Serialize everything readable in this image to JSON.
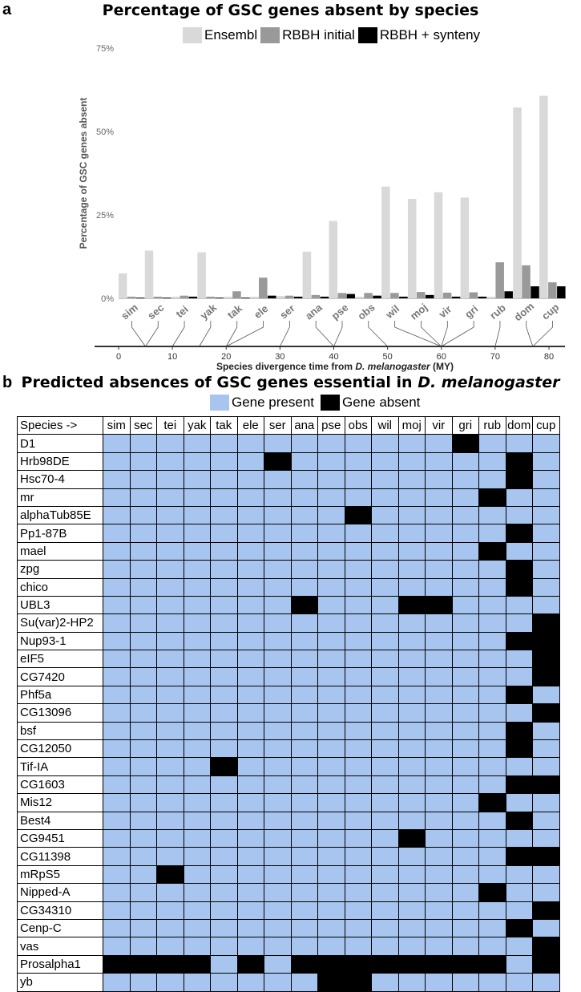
{
  "panel_a": {
    "letter": "a",
    "title": "Percentage of GSC genes absent by species",
    "legend": [
      "Ensembl",
      "RBBH initial",
      "RBBH + synteny"
    ],
    "colors": {
      "Ensembl": "#d9d9d9",
      "RBBH initial": "#999999",
      "RBBH + synteny": "#000000"
    },
    "ylabel": "Percentage of GSC genes absent",
    "xlabel_prefix": "Species divergence time from ",
    "xlabel_italic": "D. melanogaster",
    "xlabel_suffix": " (MY)",
    "ytick_labels": [
      "0%",
      "25%",
      "50%",
      "75%"
    ],
    "xtick_labels": [
      "0",
      "10",
      "20",
      "30",
      "40",
      "50",
      "60",
      "70",
      "80"
    ]
  },
  "chart_data": {
    "type": "bar",
    "categories": [
      "sim",
      "sec",
      "tei",
      "yak",
      "tak",
      "ele",
      "ser",
      "ana",
      "pse",
      "obs",
      "wil",
      "moj",
      "vir",
      "gri",
      "rub",
      "dom",
      "cup"
    ],
    "series": [
      {
        "name": "Ensembl",
        "values": [
          7.5,
          14.3,
          0.5,
          13.8,
          0.5,
          0.5,
          0.7,
          14.0,
          23.2,
          0.5,
          33.5,
          29.8,
          31.8,
          30.2,
          0.5,
          57.2,
          60.7
        ]
      },
      {
        "name": "RBBH initial",
        "values": [
          0.5,
          0.5,
          0.8,
          0.5,
          2.1,
          6.2,
          0.8,
          1.0,
          1.6,
          1.6,
          1.6,
          1.9,
          1.7,
          1.8,
          10.8,
          9.9,
          4.8
        ]
      },
      {
        "name": "RBBH + synteny",
        "values": [
          0.2,
          0.2,
          0.5,
          0.2,
          0.2,
          0.8,
          0.5,
          0.5,
          1.3,
          0.8,
          0.5,
          1.0,
          0.5,
          0.5,
          2.1,
          3.6,
          3.6
        ]
      }
    ],
    "divergence_MY": [
      5,
      5,
      10,
      15,
      20,
      20,
      30,
      40,
      40,
      50,
      60,
      60,
      60,
      60,
      70,
      77,
      77
    ],
    "ylim": [
      0,
      75
    ],
    "yticks": [
      0,
      25,
      50,
      75
    ],
    "divergence_axis": {
      "min": 0,
      "max": 80,
      "ticks": [
        0,
        10,
        20,
        30,
        40,
        50,
        60,
        70,
        80
      ]
    },
    "grid": false,
    "legend_position": "top"
  },
  "panel_b": {
    "letter": "b",
    "title_prefix": "Predicted absences of GSC genes essential in ",
    "title_italic": "D. melanogaster",
    "legend": [
      "Gene present",
      "Gene absent"
    ],
    "colors": {
      "present": "#a7c5ee",
      "absent": "#000000"
    },
    "header_label": "Species ->",
    "species": [
      "sim",
      "sec",
      "tei",
      "yak",
      "tak",
      "ele",
      "ser",
      "ana",
      "pse",
      "obs",
      "wil",
      "moj",
      "vir",
      "gri",
      "rub",
      "dom",
      "cup"
    ],
    "genes": [
      {
        "name": "D1",
        "absent": [
          "gri"
        ]
      },
      {
        "name": "Hrb98DE",
        "absent": [
          "ser",
          "dom"
        ]
      },
      {
        "name": "Hsc70-4",
        "absent": [
          "dom"
        ]
      },
      {
        "name": "mr",
        "absent": [
          "rub"
        ]
      },
      {
        "name": "alphaTub85E",
        "absent": [
          "obs"
        ]
      },
      {
        "name": "Pp1-87B",
        "absent": [
          "dom"
        ]
      },
      {
        "name": "mael",
        "absent": [
          "rub"
        ]
      },
      {
        "name": "zpg",
        "absent": [
          "dom"
        ]
      },
      {
        "name": "chico",
        "absent": [
          "dom"
        ]
      },
      {
        "name": "UBL3",
        "absent": [
          "ana",
          "moj",
          "vir"
        ]
      },
      {
        "name": "Su(var)2-HP2",
        "absent": [
          "cup"
        ]
      },
      {
        "name": "Nup93-1",
        "absent": [
          "dom",
          "cup"
        ]
      },
      {
        "name": "eIF5",
        "absent": [
          "cup"
        ]
      },
      {
        "name": "CG7420",
        "absent": [
          "cup"
        ]
      },
      {
        "name": "Phf5a",
        "absent": [
          "dom"
        ]
      },
      {
        "name": "CG13096",
        "absent": [
          "cup"
        ]
      },
      {
        "name": "bsf",
        "absent": [
          "dom"
        ]
      },
      {
        "name": "CG12050",
        "absent": [
          "dom"
        ]
      },
      {
        "name": "Tif-IA",
        "absent": [
          "tak"
        ]
      },
      {
        "name": "CG1603",
        "absent": [
          "dom",
          "cup"
        ]
      },
      {
        "name": "Mis12",
        "absent": [
          "rub"
        ]
      },
      {
        "name": "Best4",
        "absent": [
          "dom"
        ]
      },
      {
        "name": "CG9451",
        "absent": [
          "moj"
        ]
      },
      {
        "name": "CG11398",
        "absent": [
          "dom",
          "cup"
        ]
      },
      {
        "name": "mRpS5",
        "absent": [
          "tei"
        ]
      },
      {
        "name": "Nipped-A",
        "absent": [
          "rub"
        ]
      },
      {
        "name": "CG34310",
        "absent": [
          "cup"
        ]
      },
      {
        "name": "Cenp-C",
        "absent": [
          "dom"
        ]
      },
      {
        "name": "vas",
        "absent": [
          "cup"
        ]
      },
      {
        "name": "Prosalpha1",
        "absent": [
          "sim",
          "sec",
          "tei",
          "yak",
          "ele",
          "ana",
          "pse",
          "obs",
          "wil",
          "moj",
          "vir",
          "gri",
          "rub",
          "cup"
        ]
      },
      {
        "name": "yb",
        "absent": [
          "pse",
          "obs"
        ]
      }
    ]
  }
}
